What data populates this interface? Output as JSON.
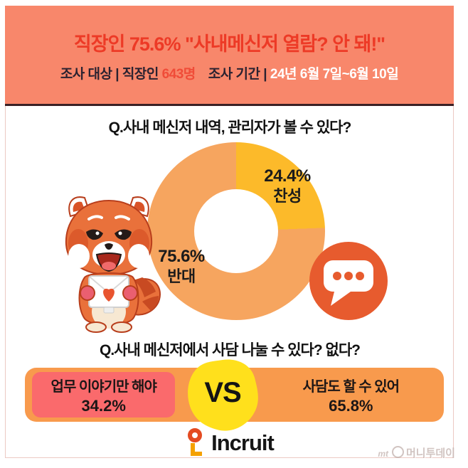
{
  "header": {
    "title": "직장인 75.6% \"사내메신저 열람? 안 돼!\"",
    "survey_target_label": "조사 대상 | 직장인",
    "survey_target_value": "643명",
    "survey_period_label": "조사 기간 |",
    "survey_period_value": "24년 6월 7일~6월 10일"
  },
  "donut_section": {
    "question": "Q.사내 메신저 내역, 관리자가 볼 수 있다?",
    "approve_pct": "24.4%",
    "approve_label": "찬성",
    "oppose_pct": "75.6%",
    "oppose_label": "반대"
  },
  "vs_section": {
    "question": "Q.사내 메신저에서 사담 나눌 수 있다? 없다?",
    "left_label": "업무 이야기만 해야",
    "left_value": "34.2%",
    "vs_text": "VS",
    "right_label": "사담도 할 수 있어",
    "right_value": "65.8%"
  },
  "footer": {
    "logo_text": "Incruit",
    "watermark_prefix": "mt",
    "watermark_text": "머니투데이"
  },
  "icons": {
    "mascot": "red-panda-mascot-holding-envelope",
    "chat": "chat-bubble-icon",
    "logo_symbol": "incruit-symbol-icon"
  },
  "chart_data": [
    {
      "type": "pie",
      "subtype": "donut",
      "title": "Q.사내 메신저 내역, 관리자가 볼 수 있다?",
      "categories": [
        "찬성",
        "반대"
      ],
      "values": [
        24.4,
        75.6
      ],
      "colors": [
        "#fcba2a",
        "#f6a55f"
      ],
      "labels": [
        "24.4% 찬성",
        "75.6% 반대"
      ],
      "start_angle_deg": 0,
      "direction": "clockwise",
      "legend_position": "on-slice"
    },
    {
      "type": "bar",
      "subtype": "vs-split-bar",
      "title": "Q.사내 메신저에서 사담 나눌 수 있다? 없다?",
      "categories": [
        "업무 이야기만 해야",
        "사담도 할 수 있어"
      ],
      "values": [
        34.2,
        65.8
      ],
      "colors": [
        "#fa6a6c",
        "#f89a4d"
      ],
      "annotation": "VS"
    }
  ],
  "colors": {
    "header_bg": "#f8876b",
    "title_red": "#ed3a26",
    "subtitle_dark": "#2b2230",
    "donut_yellow": "#fcba2a",
    "donut_orange": "#f6a55f",
    "chat_icon_orange": "#e75b2e",
    "vs_bar_orange": "#f89a4d",
    "vs_left_red": "#fa6a6c",
    "vs_blob_yellow": "#ffe01c",
    "frame_border": "#ecc9c3"
  }
}
